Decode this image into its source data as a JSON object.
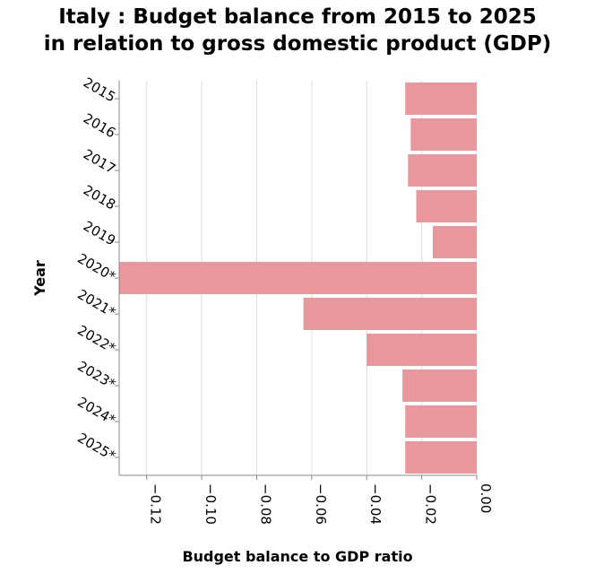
{
  "chart_data": {
    "type": "bar",
    "orientation": "horizontal",
    "title_line1": "Italy : Budget balance from 2015 to 2025",
    "title_line2": "in relation to gross domestic product (GDP)",
    "xlabel": "Budget balance to GDP ratio",
    "ylabel": "Year",
    "categories": [
      "2015",
      "2016",
      "2017",
      "2018",
      "2019",
      "2020*",
      "2021*",
      "2022*",
      "2023*",
      "2024*",
      "2025*"
    ],
    "values": [
      -0.026,
      -0.024,
      -0.025,
      -0.022,
      -0.016,
      -0.131,
      -0.063,
      -0.04,
      -0.027,
      -0.026,
      -0.026
    ],
    "xlim": [
      -0.13,
      0.0
    ],
    "xticks": [
      -0.12,
      -0.1,
      -0.08,
      -0.06,
      -0.04,
      -0.02,
      0.0
    ],
    "xtick_labels": [
      "−0.12",
      "−0.10",
      "−0.08",
      "−0.06",
      "−0.04",
      "−0.02",
      "0.00"
    ],
    "grid": true,
    "bar_color": "#e8979c"
  }
}
